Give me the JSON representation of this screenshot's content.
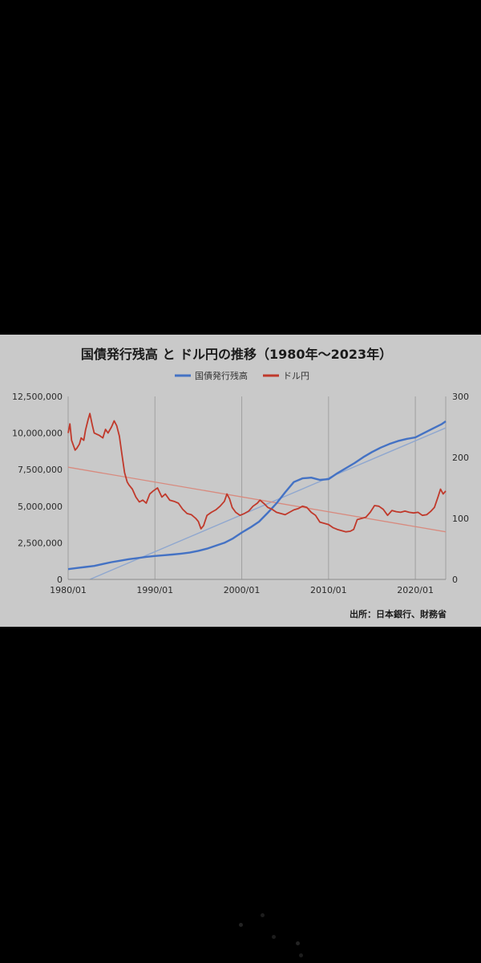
{
  "chart_data": {
    "type": "line",
    "title": "国債発行残高 と ドル円の推移（1980年〜2023年）",
    "source": "出所：日本銀行、財務省",
    "x_ticks": [
      "1980/01",
      "1990/01",
      "2000/01",
      "2010/01",
      "2020/01"
    ],
    "x_range": [
      1980.0,
      2023.5
    ],
    "y_left": {
      "range": [
        0,
        12500000
      ],
      "ticks": [
        "0",
        "2,500,000",
        "5,000,000",
        "7,500,000",
        "10,000,000",
        "12,500,000"
      ]
    },
    "y_right": {
      "range": [
        0,
        300
      ],
      "ticks": [
        "0",
        "100",
        "200",
        "300"
      ]
    },
    "grid": "vertical",
    "legend_position": "top",
    "series": [
      {
        "name": "国債発行残高",
        "axis": "left",
        "color": "#4472c4",
        "x": [
          1980,
          1981,
          1982,
          1983,
          1984,
          1985,
          1986,
          1987,
          1988,
          1989,
          1990,
          1991,
          1992,
          1993,
          1994,
          1995,
          1996,
          1997,
          1998,
          1999,
          2000,
          2001,
          2002,
          2003,
          2004,
          2005,
          2006,
          2007,
          2008,
          2009,
          2010,
          2011,
          2012,
          2013,
          2014,
          2015,
          2016,
          2017,
          2018,
          2019,
          2020,
          2021,
          2022,
          2023,
          2023.5
        ],
        "values": [
          700000,
          780000,
          850000,
          920000,
          1050000,
          1180000,
          1280000,
          1380000,
          1460000,
          1540000,
          1600000,
          1650000,
          1700000,
          1760000,
          1830000,
          1950000,
          2100000,
          2300000,
          2500000,
          2800000,
          3200000,
          3550000,
          3950000,
          4550000,
          5200000,
          5950000,
          6650000,
          6900000,
          6950000,
          6800000,
          6850000,
          7250000,
          7600000,
          7950000,
          8350000,
          8700000,
          9000000,
          9250000,
          9450000,
          9600000,
          9700000,
          10000000,
          10300000,
          10600000,
          10800000
        ]
      },
      {
        "name": "ドル円",
        "axis": "right",
        "color": "#c0392b",
        "x": [
          1980.0,
          1980.2,
          1980.4,
          1980.6,
          1980.8,
          1981.0,
          1981.3,
          1981.5,
          1981.8,
          1982.0,
          1982.3,
          1982.5,
          1982.8,
          1983.0,
          1983.3,
          1983.6,
          1984.0,
          1984.3,
          1984.6,
          1985.0,
          1985.3,
          1985.6,
          1985.9,
          1986.2,
          1986.5,
          1986.8,
          1987.0,
          1987.4,
          1987.8,
          1988.2,
          1988.6,
          1989.0,
          1989.4,
          1989.8,
          1990.3,
          1990.8,
          1991.2,
          1991.7,
          1992.2,
          1992.7,
          1993.2,
          1993.7,
          1994.2,
          1994.7,
          1995.0,
          1995.3,
          1995.6,
          1996.0,
          1996.5,
          1997.0,
          1997.5,
          1998.0,
          1998.3,
          1998.6,
          1998.9,
          1999.3,
          1999.8,
          2000.3,
          2000.8,
          2001.3,
          2001.8,
          2002.1,
          2002.6,
          2003.0,
          2003.5,
          2004.0,
          2004.5,
          2005.0,
          2005.5,
          2006.0,
          2006.5,
          2007.0,
          2007.5,
          2008.0,
          2008.5,
          2009.0,
          2009.5,
          2010.0,
          2010.5,
          2011.0,
          2011.5,
          2012.0,
          2012.5,
          2012.9,
          2013.3,
          2013.8,
          2014.3,
          2014.8,
          2015.3,
          2015.8,
          2016.3,
          2016.8,
          2017.3,
          2017.8,
          2018.3,
          2018.8,
          2019.3,
          2019.8,
          2020.3,
          2020.8,
          2021.3,
          2021.8,
          2022.2,
          2022.6,
          2022.9,
          2023.2,
          2023.5
        ],
        "values": [
          240,
          255,
          228,
          220,
          212,
          215,
          222,
          232,
          228,
          245,
          262,
          272,
          252,
          240,
          238,
          236,
          232,
          246,
          240,
          250,
          260,
          252,
          235,
          205,
          175,
          160,
          155,
          148,
          135,
          127,
          130,
          125,
          140,
          145,
          150,
          135,
          140,
          130,
          128,
          125,
          115,
          108,
          106,
          100,
          95,
          83,
          88,
          105,
          110,
          114,
          120,
          128,
          140,
          132,
          118,
          110,
          105,
          108,
          112,
          120,
          125,
          130,
          124,
          118,
          115,
          110,
          108,
          106,
          110,
          114,
          116,
          120,
          118,
          110,
          105,
          94,
          92,
          90,
          85,
          82,
          80,
          78,
          79,
          82,
          98,
          100,
          102,
          110,
          121,
          120,
          115,
          105,
          113,
          111,
          110,
          112,
          110,
          109,
          110,
          105,
          106,
          112,
          118,
          135,
          148,
          140,
          145
        ]
      },
      {
        "name": "国債発行残高 trend",
        "axis": "left",
        "color": "#8fa7cf",
        "x": [
          1982.5,
          2023.5
        ],
        "values": [
          0,
          10350000
        ]
      },
      {
        "name": "ドル円 trend",
        "axis": "right",
        "color": "#d88a7e",
        "x": [
          1980.0,
          2023.5
        ],
        "values": [
          184,
          78
        ]
      }
    ]
  }
}
